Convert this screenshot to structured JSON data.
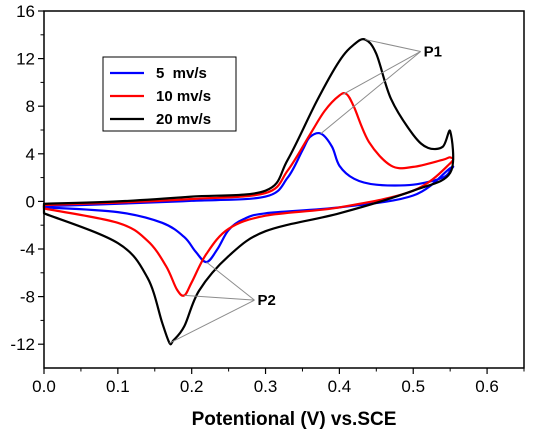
{
  "chart_data": {
    "type": "line",
    "title": "",
    "xlabel": "Potentional (V) vs.SCE",
    "ylabel": "",
    "xlim": [
      0.0,
      0.65
    ],
    "ylim": [
      -14,
      16
    ],
    "xticks": [
      "0.0",
      "0.1",
      "0.2",
      "0.3",
      "0.4",
      "0.5",
      "0.6"
    ],
    "xtick_values": [
      0.0,
      0.1,
      0.2,
      0.3,
      0.4,
      0.5,
      0.6
    ],
    "yticks": [
      "16",
      "12",
      "8",
      "4",
      "0",
      "-4",
      "-8",
      "-12"
    ],
    "ytick_values": [
      16,
      12,
      8,
      4,
      0,
      -4,
      -8,
      -12
    ],
    "grid": false,
    "legend_position": "top-left",
    "series": [
      {
        "name": "5  mv/s",
        "color": "#0000ff",
        "x": [
          0.0,
          0.1,
          0.2,
          0.3,
          0.33,
          0.35,
          0.36,
          0.375,
          0.39,
          0.4,
          0.42,
          0.45,
          0.5,
          0.54,
          0.55,
          0.55,
          0.5,
          0.4,
          0.3,
          0.27,
          0.25,
          0.235,
          0.22,
          0.205,
          0.19,
          0.16,
          0.1,
          0.0
        ],
        "y": [
          -0.4,
          -0.2,
          0.05,
          0.4,
          2.0,
          4.3,
          5.4,
          5.7,
          4.6,
          3.0,
          1.9,
          1.4,
          1.4,
          2.0,
          2.6,
          2.8,
          0.5,
          -0.5,
          -1.0,
          -1.5,
          -2.4,
          -4.0,
          -5.1,
          -4.2,
          -3.0,
          -1.8,
          -0.9,
          -0.5
        ]
      },
      {
        "name": "10 mv/s",
        "color": "#ff0000",
        "x": [
          0.0,
          0.1,
          0.2,
          0.3,
          0.33,
          0.36,
          0.38,
          0.4,
          0.41,
          0.42,
          0.44,
          0.47,
          0.5,
          0.54,
          0.55,
          0.55,
          0.5,
          0.4,
          0.3,
          0.25,
          0.22,
          0.2,
          0.19,
          0.18,
          0.165,
          0.14,
          0.1,
          0.0
        ],
        "y": [
          -0.3,
          -0.1,
          0.2,
          0.7,
          2.6,
          5.6,
          7.6,
          8.9,
          9.0,
          7.9,
          5.0,
          3.0,
          2.9,
          3.5,
          3.7,
          3.2,
          0.9,
          -0.5,
          -1.2,
          -2.3,
          -4.4,
          -6.8,
          -7.9,
          -7.4,
          -5.4,
          -3.3,
          -1.8,
          -0.6
        ]
      },
      {
        "name": "20 mv/s",
        "color": "#000000",
        "x": [
          0.0,
          0.1,
          0.2,
          0.3,
          0.33,
          0.37,
          0.4,
          0.42,
          0.435,
          0.45,
          0.47,
          0.5,
          0.52,
          0.54,
          0.55,
          0.55,
          0.5,
          0.4,
          0.3,
          0.25,
          0.21,
          0.19,
          0.175,
          0.17,
          0.16,
          0.14,
          0.1,
          0.0
        ],
        "y": [
          -0.2,
          0.0,
          0.4,
          0.9,
          3.5,
          8.5,
          11.8,
          13.2,
          13.6,
          12.4,
          8.6,
          5.6,
          4.5,
          4.6,
          5.9,
          2.4,
          0.9,
          -1.0,
          -2.5,
          -4.6,
          -7.5,
          -10.5,
          -11.7,
          -11.9,
          -10.2,
          -6.4,
          -3.5,
          -1.0
        ]
      }
    ],
    "annotations": [
      {
        "text": "P1",
        "label_at": [
          0.51,
          12.6
        ],
        "targets": [
          [
            0.435,
            13.6
          ],
          [
            0.405,
            9.0
          ],
          [
            0.375,
            5.7
          ]
        ]
      },
      {
        "text": "P2",
        "label_at": [
          0.285,
          -8.3
        ],
        "targets": [
          [
            0.22,
            -5.1
          ],
          [
            0.19,
            -7.9
          ],
          [
            0.17,
            -11.9
          ]
        ]
      }
    ]
  }
}
